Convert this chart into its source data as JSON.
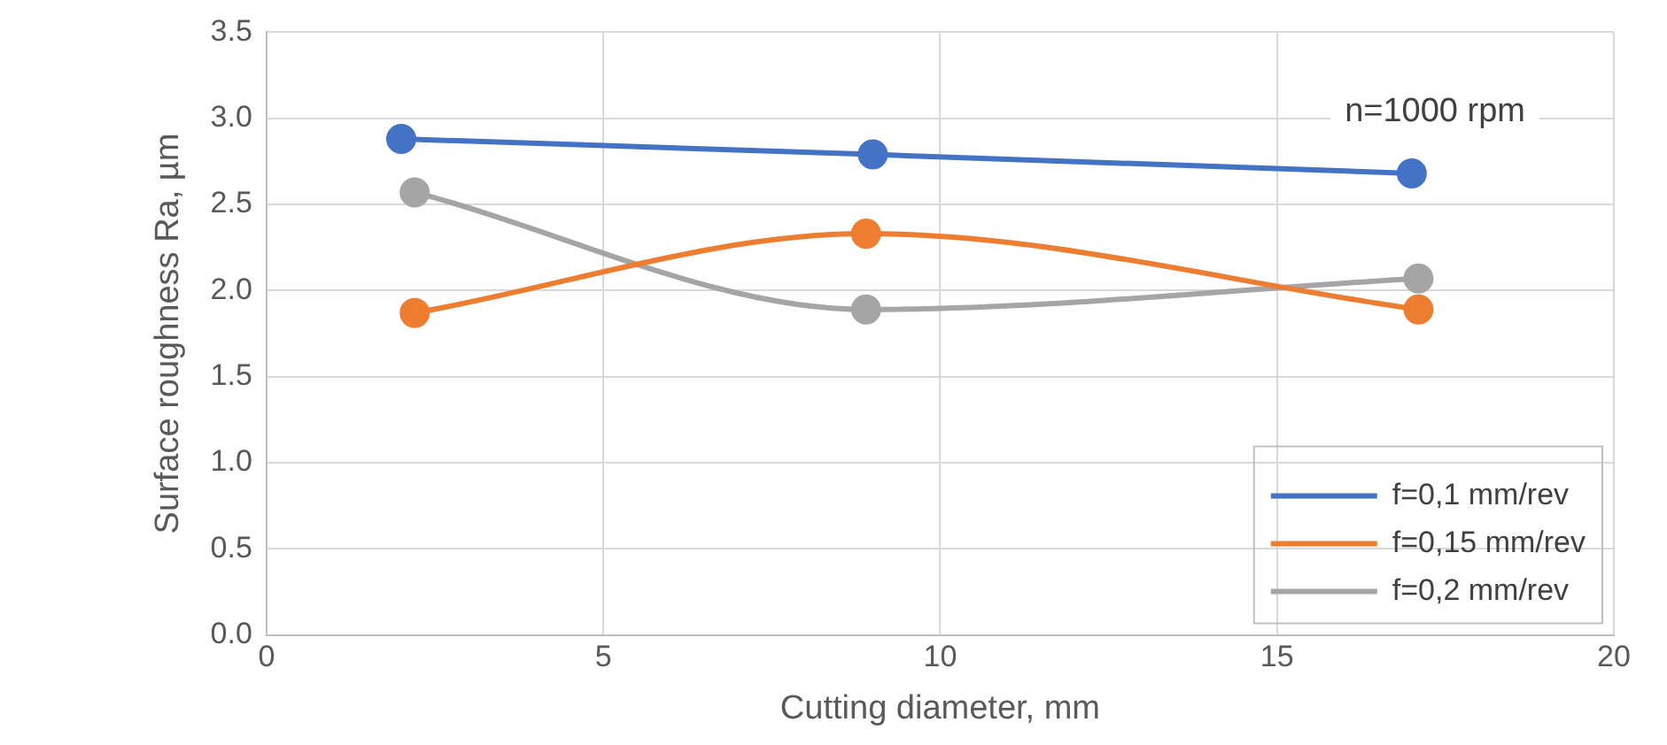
{
  "chart_data": {
    "type": "line",
    "xlabel": "Cutting diameter, mm",
    "ylabel": "Surface roughness Ra, µm",
    "xlim": [
      0,
      20
    ],
    "xticks": [
      0,
      5,
      10,
      15,
      20
    ],
    "ylim": [
      0,
      3.5
    ],
    "yticks": [
      {
        "value": 0,
        "label": "0.0"
      },
      {
        "value": 0.5,
        "label": "0.5"
      },
      {
        "value": 1,
        "label": "1.0"
      },
      {
        "value": 1.5,
        "label": "1.5"
      },
      {
        "value": 2,
        "label": "2.0"
      },
      {
        "value": 2.5,
        "label": "2.5"
      },
      {
        "value": 3,
        "label": "3.0"
      },
      {
        "value": 3.5,
        "label": "3.5"
      }
    ],
    "grid": true,
    "legend": "bottom right",
    "marker": "circle",
    "line_style": "solid",
    "annotations": [
      "n=1000 rpm"
    ],
    "series": [
      {
        "name": "f=0,1 mm/rev",
        "color": "#4472c4",
        "x": [
          2.0,
          9.0,
          17.0
        ],
        "values": [
          2.88,
          2.79,
          2.68
        ]
      },
      {
        "name": "f=0,15 mm/rev",
        "color": "#ed7d31",
        "x": [
          2.2,
          8.9,
          17.1
        ],
        "values": [
          1.87,
          2.33,
          1.89
        ]
      },
      {
        "name": "f=0,2 mm/rev",
        "color": "#a5a5a5",
        "x": [
          2.2,
          8.9,
          17.1
        ],
        "values": [
          2.57,
          1.89,
          2.07
        ]
      }
    ]
  }
}
